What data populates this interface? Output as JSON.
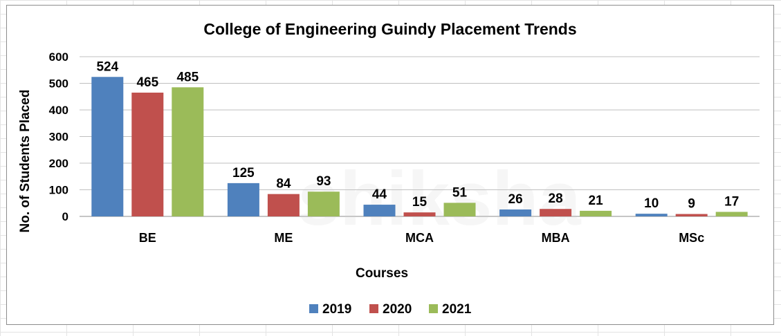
{
  "chart_data": {
    "type": "bar",
    "title": "College of Engineering Guindy Placement Trends",
    "xlabel": "Courses",
    "ylabel": "No. of Students Placed",
    "categories": [
      "BE",
      "ME",
      "MCA",
      "MBA",
      "MSc"
    ],
    "series": [
      {
        "name": "2019",
        "color": "#4f81bd",
        "values": [
          524,
          125,
          44,
          26,
          10
        ]
      },
      {
        "name": "2020",
        "color": "#c0504d",
        "values": [
          465,
          84,
          15,
          28,
          9
        ]
      },
      {
        "name": "2021",
        "color": "#9bbb59",
        "values": [
          485,
          93,
          51,
          21,
          17
        ]
      }
    ],
    "ylim": [
      0,
      600
    ],
    "yticks": [
      0,
      100,
      200,
      300,
      400,
      500,
      600
    ],
    "grid": true,
    "legend": "bottom"
  },
  "watermark": "shiksha"
}
